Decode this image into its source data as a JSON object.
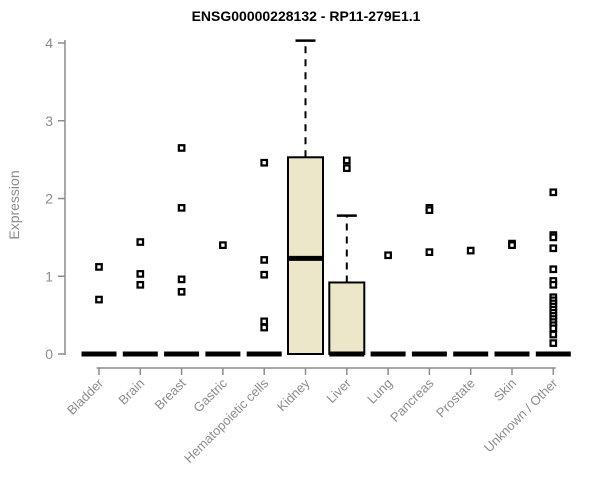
{
  "chart_data": {
    "type": "boxplot",
    "title": "ENSG00000228132 - RP11-279E1.1",
    "ylabel": "Expression",
    "xlabel": "",
    "ylim": [
      0,
      4.1
    ],
    "yticks": [
      0,
      1,
      2,
      3,
      4
    ],
    "grid": false,
    "legend": "none",
    "colors": {
      "box_fill": "#ece7c9",
      "box_border": "#000000",
      "median": "#000000",
      "whisker": "#000000",
      "outlier": "#000000",
      "axis": "#8c8c8c",
      "tick_label": "#8c8c8c",
      "title": "#000000"
    },
    "categories": [
      "Bladder",
      "Brain",
      "Breast",
      "Gastric",
      "Hematopoietic cells",
      "Kidney",
      "Liver",
      "Lung",
      "Pancreas",
      "Prostate",
      "Skin",
      "Unknown / Other"
    ],
    "series": [
      {
        "category": "Bladder",
        "q1": 0,
        "median": 0,
        "q3": 0,
        "whisker_low": 0,
        "whisker_high": 0,
        "outliers": [
          1.12,
          0.7
        ]
      },
      {
        "category": "Brain",
        "q1": 0,
        "median": 0,
        "q3": 0,
        "whisker_low": 0,
        "whisker_high": 0,
        "outliers": [
          1.44,
          1.03,
          0.89
        ]
      },
      {
        "category": "Breast",
        "q1": 0,
        "median": 0,
        "q3": 0,
        "whisker_low": 0,
        "whisker_high": 0,
        "outliers": [
          2.65,
          1.88,
          0.96,
          0.8
        ]
      },
      {
        "category": "Gastric",
        "q1": 0,
        "median": 0,
        "q3": 0,
        "whisker_low": 0,
        "whisker_high": 0,
        "outliers": [
          1.4
        ]
      },
      {
        "category": "Hematopoietic cells",
        "q1": 0,
        "median": 0,
        "q3": 0,
        "whisker_low": 0,
        "whisker_high": 0,
        "outliers": [
          2.46,
          1.21,
          1.02,
          0.42,
          0.34
        ]
      },
      {
        "category": "Kidney",
        "q1": 0,
        "median": 1.23,
        "q3": 2.53,
        "whisker_low": 0,
        "whisker_high": 4.03,
        "outliers": []
      },
      {
        "category": "Liver",
        "q1": 0,
        "median": 0,
        "q3": 0.92,
        "whisker_low": 0,
        "whisker_high": 1.78,
        "outliers": [
          2.49,
          2.39
        ]
      },
      {
        "category": "Lung",
        "q1": 0,
        "median": 0,
        "q3": 0,
        "whisker_low": 0,
        "whisker_high": 0,
        "outliers": [
          1.27
        ]
      },
      {
        "category": "Pancreas",
        "q1": 0,
        "median": 0,
        "q3": 0,
        "whisker_low": 0,
        "whisker_high": 0,
        "outliers": [
          1.88,
          1.85,
          1.31
        ]
      },
      {
        "category": "Prostate",
        "q1": 0,
        "median": 0,
        "q3": 0,
        "whisker_low": 0,
        "whisker_high": 0,
        "outliers": [
          1.33
        ]
      },
      {
        "category": "Skin",
        "q1": 0,
        "median": 0,
        "q3": 0,
        "whisker_low": 0,
        "whisker_high": 0,
        "outliers": [
          1.42,
          1.4
        ]
      },
      {
        "category": "Unknown / Other",
        "q1": 0,
        "median": 0,
        "q3": 0,
        "whisker_low": 0,
        "whisker_high": 0,
        "outliers": [
          2.08,
          1.53,
          1.5,
          1.36,
          1.09,
          0.94,
          0.89,
          0.73,
          0.69,
          0.65,
          0.61,
          0.57,
          0.53,
          0.49,
          0.45,
          0.41,
          0.37,
          0.33,
          0.25,
          0.14
        ]
      }
    ]
  }
}
